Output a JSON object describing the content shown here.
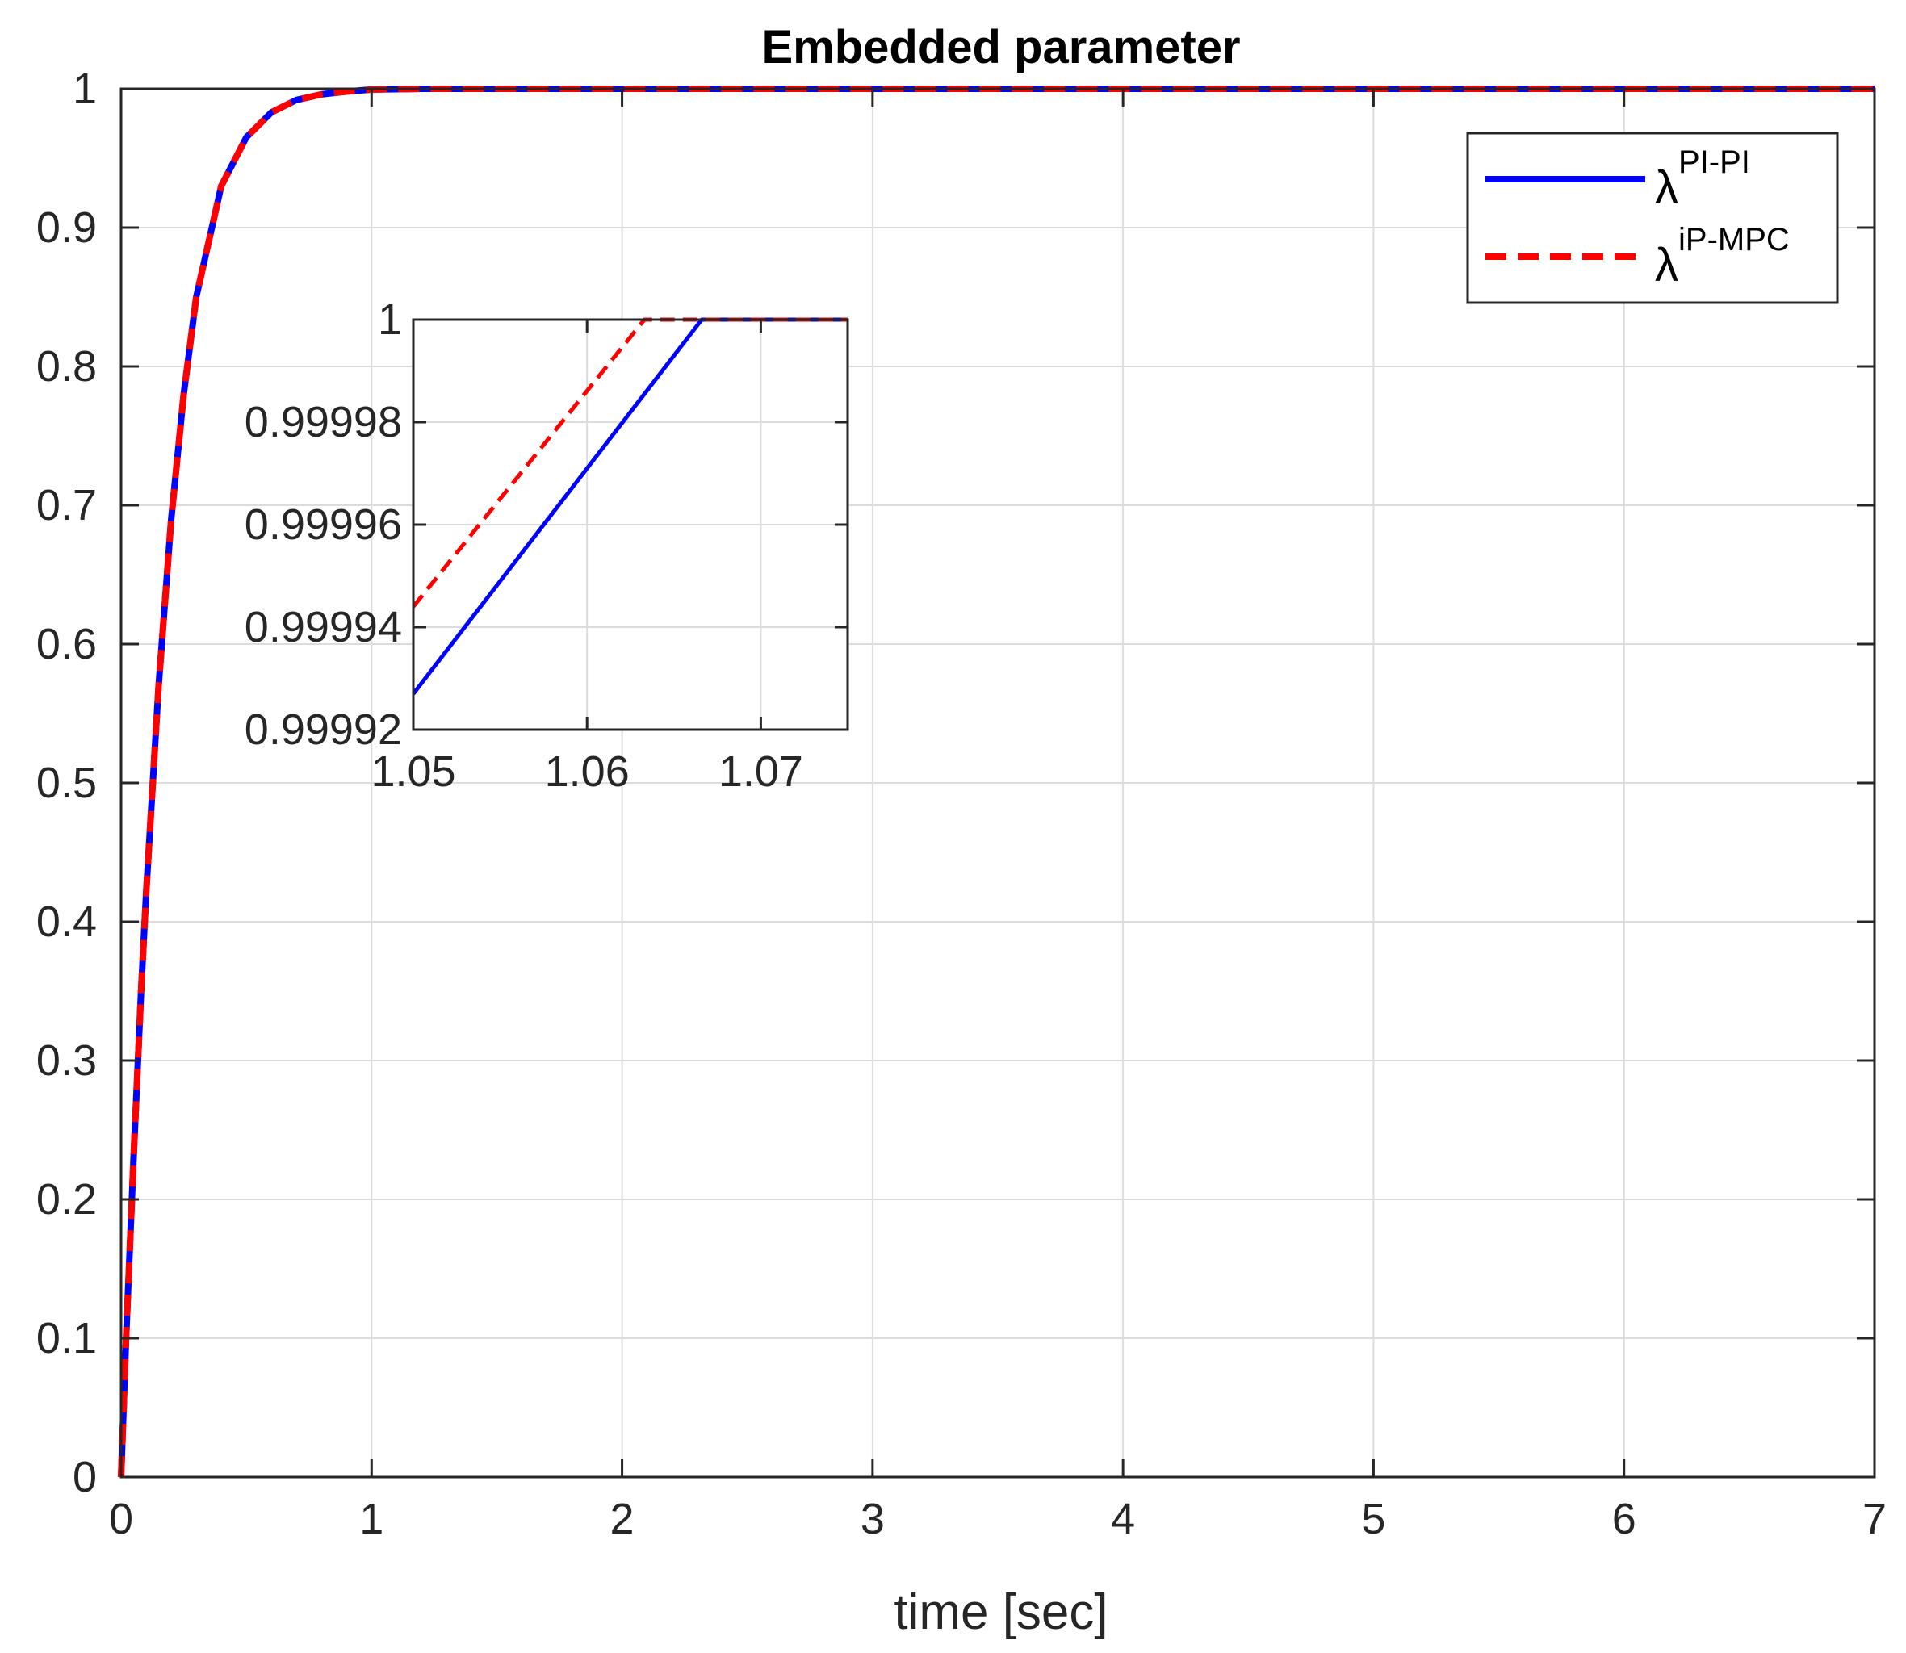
{
  "chart_data": [
    {
      "type": "line",
      "title": "Embedded parameter",
      "xlabel": "time [sec]",
      "ylabel": "",
      "xlim": [
        0,
        7
      ],
      "ylim": [
        0,
        1
      ],
      "xticks": [
        0,
        1,
        2,
        3,
        4,
        5,
        6,
        7
      ],
      "yticks": [
        0,
        0.1,
        0.2,
        0.3,
        0.4,
        0.5,
        0.6,
        0.7,
        0.8,
        0.9,
        1
      ],
      "grid": true,
      "legend_position": "top-right",
      "series": [
        {
          "name": "λ^PI-PI",
          "label_base": "λ",
          "label_sup": "PI-PI",
          "color": "#0000ff",
          "style": "solid",
          "x": [
            0,
            0.02,
            0.05,
            0.08,
            0.1,
            0.15,
            0.2,
            0.25,
            0.3,
            0.35,
            0.4,
            0.5,
            0.6,
            0.7,
            0.8,
            0.9,
            1.0,
            1.2,
            1.5,
            2,
            3,
            4,
            5,
            6,
            7
          ],
          "y": [
            0,
            0.1,
            0.23,
            0.35,
            0.42,
            0.57,
            0.69,
            0.78,
            0.85,
            0.89,
            0.93,
            0.965,
            0.983,
            0.992,
            0.996,
            0.998,
            0.9995,
            1,
            1,
            1,
            1,
            1,
            1,
            1,
            1
          ]
        },
        {
          "name": "λ^iP-MPC",
          "label_base": "λ",
          "label_sup": "iP-MPC",
          "color": "#ff0000",
          "style": "dashed",
          "x": [
            0,
            0.02,
            0.05,
            0.08,
            0.1,
            0.15,
            0.2,
            0.25,
            0.3,
            0.35,
            0.4,
            0.5,
            0.6,
            0.7,
            0.8,
            0.9,
            1.0,
            1.2,
            1.5,
            2,
            3,
            4,
            5,
            6,
            7
          ],
          "y": [
            0,
            0.1,
            0.23,
            0.35,
            0.42,
            0.57,
            0.69,
            0.78,
            0.85,
            0.89,
            0.93,
            0.965,
            0.983,
            0.992,
            0.996,
            0.998,
            0.9995,
            1,
            1,
            1,
            1,
            1,
            1,
            1,
            1
          ]
        }
      ]
    },
    {
      "type": "line",
      "title": "",
      "xlim": [
        1.05,
        1.075
      ],
      "ylim": [
        0.99992,
        1
      ],
      "xticks": [
        1.05,
        1.06,
        1.07
      ],
      "xtick_labels": [
        "1.05",
        "1.06",
        "1.07"
      ],
      "yticks": [
        0.99992,
        0.99994,
        0.99996,
        0.99998,
        1
      ],
      "ytick_labels": [
        "0.99992",
        "0.99994",
        "0.99996",
        "0.99998",
        "1"
      ],
      "grid": true,
      "series": [
        {
          "name": "λ^PI-PI",
          "color": "#0000ff",
          "style": "solid",
          "x": [
            1.05,
            1.0666,
            1.075
          ],
          "y": [
            0.999927,
            1,
            1
          ]
        },
        {
          "name": "λ^iP-MPC",
          "color": "#ff0000",
          "style": "dashed",
          "x": [
            1.05,
            1.0633,
            1.075
          ],
          "y": [
            0.999944,
            1,
            1
          ]
        }
      ]
    }
  ]
}
